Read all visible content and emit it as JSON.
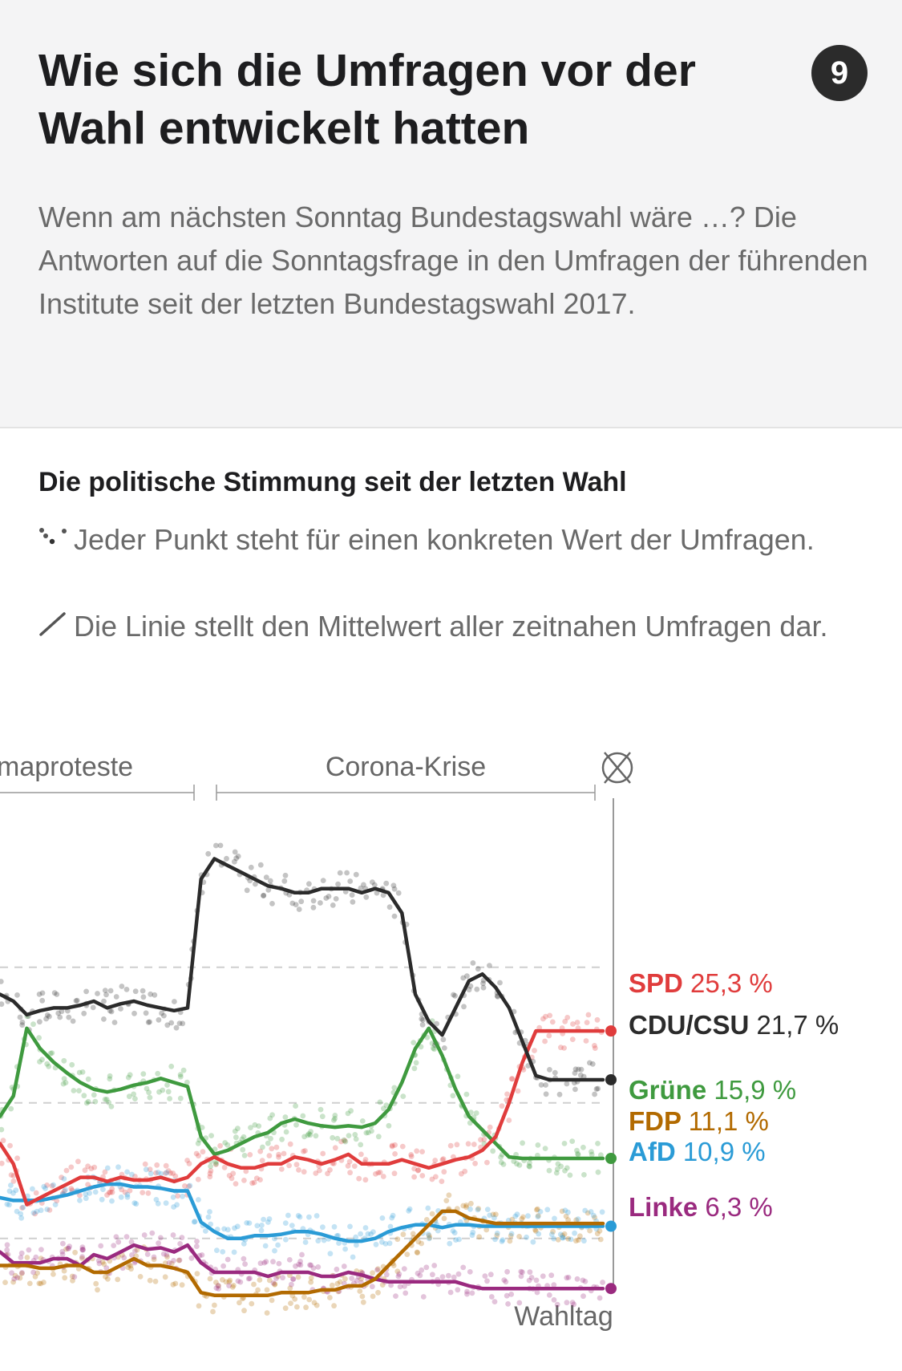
{
  "header": {
    "title": "Wie sich die Umfragen vor der Wahl entwickelt hatten",
    "badge": "9",
    "subtitle": "Wenn am nächsten Sonntag Bundestagswahl wäre …? Die Antworten auf die Sonntagsfrage in den Umfragen der führenden Institute seit der letzten Bundestagswahl 2017."
  },
  "section": {
    "heading": "Die politische Stimmung seit der letzten Wahl",
    "note_points": "Jeder Punkt steht für einen konkreten Wert der Umfragen.",
    "note_line": "Die Linie stellt den Mittelwert aller zeitnahen Umfragen dar.",
    "points_icon": "scatter-dots-icon",
    "line_icon": "diagonal-line-icon"
  },
  "chart_data": {
    "type": "line",
    "events": [
      {
        "label": "maproteste"
      },
      {
        "label": "Corona-Krise"
      }
    ],
    "election_icon": "ballot-cross-icon",
    "end_label": "Wahltag",
    "grid": true,
    "ylim": [
      3,
      40
    ],
    "x": [
      0,
      1,
      2,
      3,
      4,
      5,
      6,
      7,
      8,
      9,
      10,
      11,
      12,
      13,
      14,
      15,
      16,
      17,
      18,
      19,
      20,
      21,
      22,
      23,
      24,
      25,
      26,
      27,
      28,
      29,
      30,
      31,
      32,
      33,
      34,
      35,
      36,
      37,
      38,
      39,
      40,
      41,
      42,
      43,
      44,
      45
    ],
    "series": [
      {
        "name": "CDU/CSU",
        "color": "#2b2b2b",
        "value_label": "21,7 %",
        "values": [
          28,
          27.5,
          26.5,
          26.8,
          27,
          27,
          27.2,
          27.5,
          27,
          27.3,
          27.5,
          27.2,
          27,
          26.8,
          27,
          36.5,
          38,
          37.5,
          37,
          36.5,
          36,
          35.8,
          35.5,
          35.5,
          35.8,
          35.8,
          35.8,
          35.5,
          35.8,
          35.5,
          34,
          28,
          26,
          25,
          27,
          29,
          29.5,
          28.5,
          27,
          24.5,
          22,
          21.7,
          21.7,
          21.7,
          21.7,
          21.7
        ]
      },
      {
        "name": "SPD",
        "color": "#e03c3c",
        "value_label": "25,3 %",
        "values": [
          17,
          15.5,
          12.5,
          13,
          13.5,
          14,
          14.5,
          14.5,
          14.2,
          14.5,
          14.3,
          14.3,
          14.5,
          14.2,
          14.5,
          15.5,
          16,
          15.5,
          15.2,
          15.2,
          15.5,
          15.5,
          16,
          15.8,
          15.5,
          15.8,
          16.2,
          15.5,
          15.5,
          15.5,
          15.8,
          15.5,
          15.2,
          15.5,
          15.8,
          16,
          16.5,
          17.5,
          20,
          23,
          25.3,
          25.3,
          25.3,
          25.3,
          25.3,
          25.3
        ]
      },
      {
        "name": "Grüne",
        "color": "#3f9a3f",
        "value_label": "15,9 %",
        "values": [
          19,
          20.5,
          25.5,
          24,
          23,
          22.2,
          21.5,
          21,
          20.8,
          21,
          21.3,
          21.5,
          21.8,
          21.5,
          21.2,
          17.5,
          16.2,
          16.5,
          17,
          17.5,
          17.8,
          18.5,
          18.8,
          18.5,
          18.3,
          18.2,
          18.3,
          18.2,
          18.5,
          19.5,
          21.5,
          24,
          25.5,
          23.5,
          21,
          19,
          18,
          17,
          16,
          15.9,
          15.9,
          15.9,
          15.9,
          15.9,
          15.9,
          15.9
        ]
      },
      {
        "name": "FDP",
        "color": "#b26a00",
        "value_label": "11,1 %",
        "values": [
          8,
          8,
          8,
          7.8,
          7.8,
          8,
          8,
          7.5,
          7.5,
          8,
          8.5,
          8,
          8,
          7.8,
          7.5,
          6,
          5.8,
          5.8,
          5.8,
          5.8,
          5.8,
          6,
          6,
          6,
          6.2,
          6.2,
          6.5,
          6.5,
          7,
          8,
          9,
          10,
          11,
          12,
          12,
          11.5,
          11.3,
          11.1,
          11.1,
          11.1,
          11.1,
          11.1,
          11.1,
          11.1,
          11.1,
          11.1
        ]
      },
      {
        "name": "AfD",
        "color": "#2a9bd6",
        "value_label": "10,9 %",
        "values": [
          13,
          12.8,
          12.8,
          12.8,
          13,
          13.2,
          13.5,
          13.8,
          14,
          14,
          13.8,
          13.8,
          13.7,
          13.5,
          13.5,
          11.2,
          10.5,
          10,
          10,
          10.2,
          10.2,
          10.3,
          10.5,
          10.5,
          10.3,
          10,
          9.8,
          9.8,
          10,
          10.5,
          10.8,
          11,
          11,
          10.8,
          11,
          11,
          10.9,
          10.9,
          10.9,
          10.9,
          10.9,
          10.9,
          10.9,
          10.9,
          10.9,
          10.9
        ]
      },
      {
        "name": "Linke",
        "color": "#9a2a7f",
        "value_label": "6,3 %",
        "values": [
          9,
          8.2,
          8.2,
          8.2,
          8.5,
          8.5,
          8,
          8.8,
          8.5,
          9,
          9.5,
          9.2,
          9.3,
          9,
          9.5,
          8.2,
          7.5,
          7.5,
          7.5,
          7.5,
          7.2,
          7.5,
          7.5,
          7.5,
          7.2,
          7.2,
          7.5,
          7.3,
          7,
          6.8,
          6.8,
          6.8,
          6.8,
          6.8,
          6.8,
          6.5,
          6.3,
          6.3,
          6.3,
          6.3,
          6.3,
          6.3,
          6.3,
          6.3,
          6.3,
          6.3
        ]
      }
    ]
  }
}
